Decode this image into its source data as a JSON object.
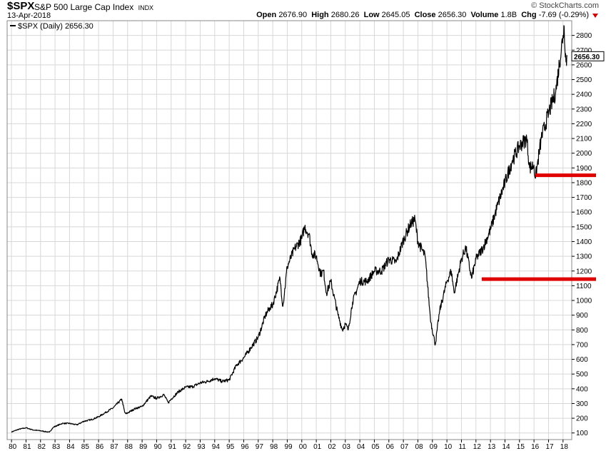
{
  "header": {
    "symbol": "$SPX",
    "name": "S&P 500 Large Cap Index",
    "exchange": "INDX",
    "date": "13-Apr-2018",
    "brand": "© StockCharts.com",
    "open_label": "Open",
    "open": "2676.90",
    "high_label": "High",
    "high": "2680.26",
    "low_label": "Low",
    "low": "2645.05",
    "close_label": "Close",
    "close": "2656.30",
    "volume_label": "Volume",
    "volume": "1.8B",
    "chg_label": "Chg",
    "chg": "-7.69 (-0.29%)"
  },
  "legend": {
    "label": "$SPX (Daily) 2656.30"
  },
  "last_value_label": "2656.30",
  "colors": {
    "line": "#000000",
    "grid": "#d8d8d8",
    "support": "#e00000",
    "down": "#cc0000"
  },
  "chart_data": {
    "type": "line",
    "series": [
      {
        "name": "$SPX (Daily)",
        "x": [
          1980.0,
          1980.5,
          1981.0,
          1981.5,
          1982.0,
          1982.6,
          1982.9,
          1983.5,
          1984.0,
          1984.5,
          1985.0,
          1985.5,
          1986.0,
          1986.5,
          1987.0,
          1987.6,
          1987.8,
          1987.9,
          1988.5,
          1989.0,
          1989.6,
          1990.0,
          1990.5,
          1990.8,
          1991.0,
          1991.5,
          1992.0,
          1992.5,
          1993.0,
          1993.5,
          1994.0,
          1994.5,
          1995.0,
          1995.5,
          1996.0,
          1996.5,
          1997.0,
          1997.5,
          1997.8,
          1998.0,
          1998.5,
          1998.7,
          1999.0,
          1999.5,
          2000.0,
          2000.2,
          2000.5,
          2000.7,
          2001.0,
          2001.3,
          2001.5,
          2001.7,
          2002.0,
          2002.5,
          2002.8,
          2003.0,
          2003.2,
          2003.5,
          2004.0,
          2004.5,
          2005.0,
          2005.5,
          2006.0,
          2006.5,
          2007.0,
          2007.5,
          2007.8,
          2008.0,
          2008.5,
          2008.8,
          2008.9,
          2009.2,
          2009.5,
          2010.0,
          2010.3,
          2010.5,
          2011.0,
          2011.3,
          2011.7,
          2012.0,
          2012.5,
          2013.0,
          2013.5,
          2014.0,
          2014.5,
          2015.0,
          2015.5,
          2015.7,
          2016.0,
          2016.1,
          2016.5,
          2017.0,
          2017.5,
          2018.0,
          2018.08,
          2018.2,
          2018.28
        ],
        "values": [
          107,
          125,
          135,
          120,
          115,
          105,
          140,
          165,
          165,
          155,
          180,
          190,
          210,
          240,
          270,
          330,
          240,
          230,
          265,
          280,
          350,
          335,
          360,
          305,
          330,
          380,
          410,
          415,
          440,
          450,
          470,
          450,
          460,
          560,
          610,
          680,
          750,
          900,
          950,
          970,
          1150,
          960,
          1230,
          1350,
          1420,
          1500,
          1450,
          1320,
          1300,
          1180,
          1200,
          1050,
          1130,
          900,
          800,
          840,
          800,
          990,
          1130,
          1130,
          1200,
          1200,
          1280,
          1260,
          1410,
          1520,
          1550,
          1400,
          1300,
          950,
          850,
          700,
          930,
          1130,
          1200,
          1050,
          1280,
          1360,
          1150,
          1280,
          1360,
          1480,
          1650,
          1800,
          1950,
          2050,
          2100,
          1900,
          1920,
          1830,
          2100,
          2270,
          2420,
          2800,
          2860,
          2620,
          2656
        ]
      }
    ],
    "x_ticks": [
      "80",
      "81",
      "82",
      "83",
      "84",
      "85",
      "86",
      "87",
      "88",
      "89",
      "90",
      "91",
      "92",
      "93",
      "94",
      "95",
      "96",
      "97",
      "98",
      "99",
      "00",
      "01",
      "02",
      "03",
      "04",
      "05",
      "06",
      "07",
      "08",
      "09",
      "10",
      "11",
      "12",
      "13",
      "14",
      "15",
      "16",
      "17",
      "18"
    ],
    "x_tick_years": [
      1980,
      1981,
      1982,
      1983,
      1984,
      1985,
      1986,
      1987,
      1988,
      1989,
      1990,
      1991,
      1992,
      1993,
      1994,
      1995,
      1996,
      1997,
      1998,
      1999,
      2000,
      2001,
      2002,
      2003,
      2004,
      2005,
      2006,
      2007,
      2008,
      2009,
      2010,
      2011,
      2012,
      2013,
      2014,
      2015,
      2016,
      2017,
      2018
    ],
    "y_ticks": [
      100,
      200,
      300,
      400,
      500,
      600,
      700,
      800,
      900,
      1000,
      1100,
      1200,
      1300,
      1400,
      1500,
      1600,
      1700,
      1800,
      1900,
      2000,
      2100,
      2200,
      2300,
      2400,
      2500,
      2600,
      2700,
      2800
    ],
    "xlim": [
      1979.7,
      2018.6
    ],
    "ylim": [
      55,
      2900
    ],
    "grid": true,
    "annotations": [
      {
        "type": "horizontal_line",
        "value": 1850,
        "x_start": 2016.1
      },
      {
        "type": "horizontal_line",
        "value": 1145,
        "x_start": 2012.4
      }
    ]
  }
}
